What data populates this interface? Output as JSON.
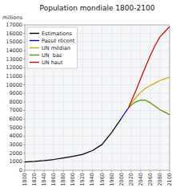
{
  "chart_data": {
    "type": "line",
    "title": "Population mondiale 1800-2100",
    "ylabel": "millions",
    "x": [
      1800,
      1820,
      1840,
      1860,
      1880,
      1900,
      1920,
      1940,
      1960,
      1980,
      2000,
      2005,
      2010,
      2015,
      2020,
      2030,
      2040,
      2050,
      2060,
      2070,
      2080,
      2090,
      2100
    ],
    "series": [
      {
        "name": "Estimations",
        "color": "#000000",
        "values": [
          978,
          1040,
          1130,
          1265,
          1440,
          1634,
          1869,
          2300,
          3018,
          4434,
          6070,
          null,
          null,
          null,
          null,
          null,
          null,
          null,
          null,
          null,
          null,
          null,
          null
        ]
      },
      {
        "name": "Passé récent",
        "color": "#0000cc",
        "values": [
          null,
          null,
          null,
          null,
          null,
          null,
          null,
          null,
          null,
          null,
          6070,
          6500,
          6916,
          7300,
          null,
          null,
          null,
          null,
          null,
          null,
          null,
          null,
          null
        ]
      },
      {
        "name": "UN médian",
        "color": "#ccaa00",
        "values": [
          null,
          null,
          null,
          null,
          null,
          null,
          null,
          null,
          null,
          null,
          null,
          null,
          null,
          7300,
          7800,
          8500,
          9100,
          9600,
          9900,
          10200,
          10500,
          10700,
          10900
        ]
      },
      {
        "name": "UN  bas",
        "color": "#559900",
        "values": [
          null,
          null,
          null,
          null,
          null,
          null,
          null,
          null,
          null,
          null,
          null,
          null,
          null,
          7300,
          7600,
          8000,
          8200,
          8200,
          7900,
          7500,
          7100,
          6800,
          6500
        ]
      },
      {
        "name": "UN haut",
        "color": "#cc0000",
        "values": [
          null,
          null,
          null,
          null,
          null,
          null,
          null,
          null,
          null,
          null,
          null,
          null,
          null,
          7300,
          8000,
          9300,
          10700,
          12100,
          13400,
          14600,
          15600,
          16200,
          16800
        ]
      }
    ],
    "xlim": [
      1800,
      2100
    ],
    "xticks": [
      1800,
      1820,
      1840,
      1860,
      1880,
      1900,
      1920,
      1940,
      1960,
      1980,
      2000,
      2020,
      2040,
      2060,
      2080,
      2100
    ],
    "ylim": [
      0,
      17000
    ],
    "yticks": [
      0,
      1000,
      2000,
      3000,
      4000,
      5000,
      6000,
      7000,
      8000,
      9000,
      10000,
      11000,
      12000,
      13000,
      14000,
      15000,
      16000,
      17000
    ],
    "grid": true,
    "legend": "upper left"
  }
}
